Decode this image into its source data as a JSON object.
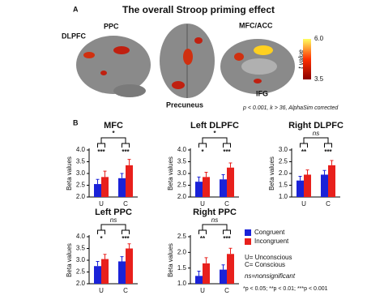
{
  "panel_a": {
    "panel_label": "A",
    "title": "The overall Stroop priming effect",
    "region_labels": [
      "DLPFC",
      "PPC",
      "MFC/ACC",
      "IFG",
      "Precuneus"
    ],
    "colorbar": {
      "label": "t value",
      "ticks": [
        {
          "value": 6,
          "label": "6.0"
        },
        {
          "value": 3.5,
          "label": "3.5"
        }
      ]
    },
    "note": "p < 0.001, k > 36, AlphaSim corrected"
  },
  "panel_b": {
    "panel_label": "B",
    "legend_notes": [
      "U= Unconscious",
      "C= Conscious",
      "ns=nonsignificant",
      "*p < 0.05; **p < 0.01; ***p < 0.001"
    ]
  },
  "chart_data": [
    {
      "type": "bar",
      "title": "MFC",
      "ylabel": "Beta values",
      "categories": [
        "U",
        "C"
      ],
      "series": [
        {
          "name": "Congruent",
          "color": "#1a22d8",
          "values": [
            2.55,
            2.8
          ],
          "errors": [
            0.2,
            0.2
          ]
        },
        {
          "name": "Incongruent",
          "color": "#e8201c",
          "values": [
            2.85,
            3.35
          ],
          "errors": [
            0.25,
            0.25
          ]
        }
      ],
      "ylim": [
        2,
        4
      ],
      "yticks": [
        {
          "value": 2,
          "label": "2.0"
        },
        {
          "value": 2.5,
          "label": "2.5"
        },
        {
          "value": 3,
          "label": "3.0"
        },
        {
          "value": 3.5,
          "label": "3.5"
        },
        {
          "value": 4,
          "label": "4.0"
        }
      ],
      "pair_annotations": [
        "***",
        "***"
      ],
      "interaction_annotation": "*"
    },
    {
      "type": "bar",
      "title": "Left DLPFC",
      "ylabel": "Beta values",
      "categories": [
        "U",
        "C"
      ],
      "series": [
        {
          "name": "Congruent",
          "color": "#1a22d8",
          "values": [
            2.65,
            2.75
          ],
          "errors": [
            0.2,
            0.2
          ]
        },
        {
          "name": "Incongruent",
          "color": "#e8201c",
          "values": [
            2.85,
            3.25
          ],
          "errors": [
            0.2,
            0.2
          ]
        }
      ],
      "ylim": [
        2,
        4
      ],
      "yticks": [
        {
          "value": 2,
          "label": "2.0"
        },
        {
          "value": 2.5,
          "label": "2.5"
        },
        {
          "value": 3,
          "label": "3.0"
        },
        {
          "value": 3.5,
          "label": "3.5"
        },
        {
          "value": 4,
          "label": "4.0"
        }
      ],
      "pair_annotations": [
        "*",
        "***"
      ],
      "interaction_annotation": "*"
    },
    {
      "type": "bar",
      "title": "Right DLPFC",
      "ylabel": "Beta values",
      "categories": [
        "U",
        "C"
      ],
      "series": [
        {
          "name": "Congruent",
          "color": "#1a22d8",
          "values": [
            1.7,
            1.95
          ],
          "errors": [
            0.18,
            0.18
          ]
        },
        {
          "name": "Incongruent",
          "color": "#e8201c",
          "values": [
            1.95,
            2.35
          ],
          "errors": [
            0.2,
            0.2
          ]
        }
      ],
      "ylim": [
        1,
        3
      ],
      "yticks": [
        {
          "value": 1,
          "label": "1.0"
        },
        {
          "value": 1.5,
          "label": "1.5"
        },
        {
          "value": 2,
          "label": "2.0"
        },
        {
          "value": 2.5,
          "label": "2.5"
        },
        {
          "value": 3,
          "label": "3.0"
        }
      ],
      "pair_annotations": [
        "**",
        "***"
      ],
      "interaction_annotation": "ns"
    },
    {
      "type": "bar",
      "title": "Left PPC",
      "ylabel": "Beta values",
      "categories": [
        "U",
        "C"
      ],
      "series": [
        {
          "name": "Congruent",
          "color": "#1a22d8",
          "values": [
            2.75,
            2.95
          ],
          "errors": [
            0.2,
            0.2
          ]
        },
        {
          "name": "Incongruent",
          "color": "#e8201c",
          "values": [
            3.05,
            3.5
          ],
          "errors": [
            0.2,
            0.2
          ]
        }
      ],
      "ylim": [
        2,
        4
      ],
      "yticks": [
        {
          "value": 2,
          "label": "2.0"
        },
        {
          "value": 2.5,
          "label": "2.5"
        },
        {
          "value": 3,
          "label": "3.0"
        },
        {
          "value": 3.5,
          "label": "3.5"
        },
        {
          "value": 4,
          "label": "4.0"
        }
      ],
      "pair_annotations": [
        "*",
        "***"
      ],
      "interaction_annotation": "ns"
    },
    {
      "type": "bar",
      "title": "Right PPC",
      "ylabel": "Beta values",
      "categories": [
        "U",
        "C"
      ],
      "series": [
        {
          "name": "Congruent",
          "color": "#1a22d8",
          "values": [
            1.25,
            1.45
          ],
          "errors": [
            0.15,
            0.15
          ]
        },
        {
          "name": "Incongruent",
          "color": "#e8201c",
          "values": [
            1.65,
            1.95
          ],
          "errors": [
            0.18,
            0.18
          ]
        }
      ],
      "ylim": [
        1,
        2.5
      ],
      "yticks": [
        {
          "value": 1,
          "label": "1.0"
        },
        {
          "value": 1.5,
          "label": "1.5"
        },
        {
          "value": 2,
          "label": "2.0"
        },
        {
          "value": 2.5,
          "label": "2.5"
        }
      ],
      "pair_annotations": [
        "**",
        "***"
      ],
      "interaction_annotation": "ns"
    }
  ]
}
